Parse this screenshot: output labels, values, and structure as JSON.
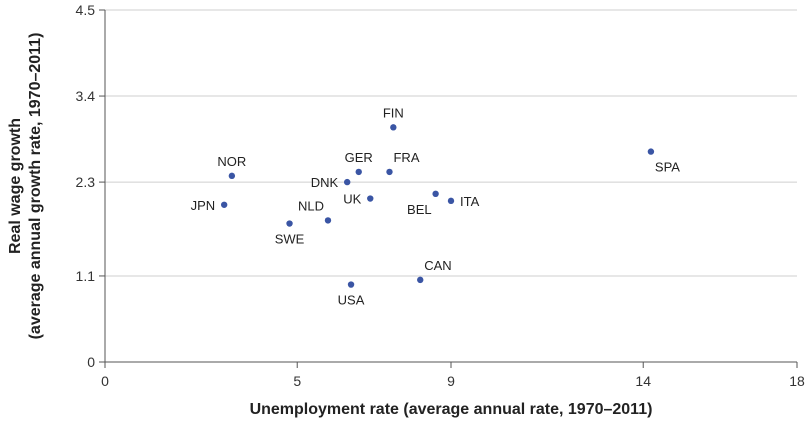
{
  "chart_data": {
    "type": "scatter",
    "xlabel": "Unemployment rate (average annual rate, 1970–2011)",
    "ylabel_line1": "Real wage growth",
    "ylabel_line2": "(average annual growth rate, 1970–2011)",
    "xlim": [
      0,
      18
    ],
    "ylim": [
      0,
      4.5
    ],
    "x_ticks": [
      0,
      5,
      9,
      14,
      18
    ],
    "y_ticks": [
      0,
      1.1,
      2.3,
      3.4,
      4.5
    ],
    "x_tick_labels": [
      "0",
      "5",
      "9",
      "14",
      "18"
    ],
    "y_tick_labels": [
      "0",
      "1.1",
      "2.3",
      "3.4",
      "4.5"
    ],
    "grid": "horizontal",
    "point_color": "#3a55a4",
    "points": [
      {
        "label": "FIN",
        "x": 7.5,
        "y": 3.0,
        "label_pos": "above"
      },
      {
        "label": "NOR",
        "x": 3.3,
        "y": 2.38,
        "label_pos": "above"
      },
      {
        "label": "GER",
        "x": 6.6,
        "y": 2.43,
        "label_pos": "above"
      },
      {
        "label": "FRA",
        "x": 7.4,
        "y": 2.43,
        "label_pos": "above-right"
      },
      {
        "label": "DNK",
        "x": 6.3,
        "y": 2.3,
        "label_pos": "left"
      },
      {
        "label": "UK",
        "x": 6.9,
        "y": 2.09,
        "label_pos": "left"
      },
      {
        "label": "BEL",
        "x": 8.6,
        "y": 2.15,
        "label_pos": "below-left"
      },
      {
        "label": "ITA",
        "x": 9.0,
        "y": 2.06,
        "label_pos": "right"
      },
      {
        "label": "JPN",
        "x": 3.1,
        "y": 2.01,
        "label_pos": "left"
      },
      {
        "label": "NLD",
        "x": 5.8,
        "y": 1.81,
        "label_pos": "above-left"
      },
      {
        "label": "SWE",
        "x": 4.8,
        "y": 1.77,
        "label_pos": "below"
      },
      {
        "label": "SPA",
        "x": 14.2,
        "y": 2.69,
        "label_pos": "below-right"
      },
      {
        "label": "CAN",
        "x": 8.2,
        "y": 1.05,
        "label_pos": "above-right"
      },
      {
        "label": "USA",
        "x": 6.4,
        "y": 0.99,
        "label_pos": "below"
      }
    ]
  }
}
